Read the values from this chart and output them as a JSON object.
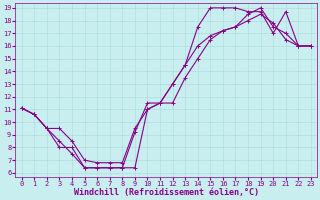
{
  "xlabel": "Windchill (Refroidissement éolien,°C)",
  "xlim": [
    0,
    23
  ],
  "ylim": [
    6,
    19
  ],
  "xticks": [
    0,
    1,
    2,
    3,
    4,
    5,
    6,
    7,
    8,
    9,
    10,
    11,
    12,
    13,
    14,
    15,
    16,
    17,
    18,
    19,
    20,
    21,
    22,
    23
  ],
  "yticks": [
    6,
    7,
    8,
    9,
    10,
    11,
    12,
    13,
    14,
    15,
    16,
    17,
    18,
    19
  ],
  "bg_color": "#c8eef0",
  "grid_color": "#b0dde0",
  "line_color": "#880088",
  "line1_x": [
    0,
    1,
    2,
    3,
    4,
    5,
    6,
    7,
    8,
    9,
    10,
    11,
    12,
    13,
    14,
    15,
    16,
    17,
    18,
    19,
    20,
    21,
    22,
    23
  ],
  "line1_y": [
    11.1,
    10.6,
    9.5,
    8.5,
    7.5,
    6.4,
    6.4,
    6.4,
    6.4,
    9.2,
    11.5,
    11.5,
    13.0,
    14.5,
    17.5,
    19.0,
    19.0,
    19.0,
    18.7,
    18.7,
    17.0,
    18.7,
    16.0,
    16.0
  ],
  "line2_x": [
    0,
    1,
    2,
    3,
    4,
    5,
    6,
    7,
    8,
    9,
    10,
    11,
    12,
    13,
    14,
    15,
    16,
    17,
    18,
    19,
    20,
    21,
    22,
    23
  ],
  "line2_y": [
    11.1,
    10.6,
    9.5,
    8.0,
    8.0,
    6.4,
    6.4,
    6.4,
    6.4,
    6.4,
    11.0,
    11.5,
    11.5,
    13.5,
    15.0,
    16.5,
    17.2,
    17.5,
    18.0,
    18.5,
    17.8,
    16.5,
    16.0,
    16.0
  ],
  "line3_x": [
    0,
    1,
    2,
    3,
    4,
    5,
    6,
    7,
    8,
    9,
    10,
    11,
    12,
    13,
    14,
    15,
    16,
    17,
    18,
    19,
    20,
    21,
    22,
    23
  ],
  "line3_y": [
    11.1,
    10.6,
    9.5,
    9.5,
    8.5,
    7.0,
    6.8,
    6.8,
    6.8,
    9.5,
    11.0,
    11.5,
    13.0,
    14.5,
    16.0,
    16.8,
    17.2,
    17.5,
    18.5,
    19.0,
    17.5,
    17.0,
    16.0,
    16.0
  ],
  "tick_fontsize": 5.0,
  "label_fontsize": 6.0,
  "marker": "+",
  "marker_size": 3,
  "line_width": 0.8
}
